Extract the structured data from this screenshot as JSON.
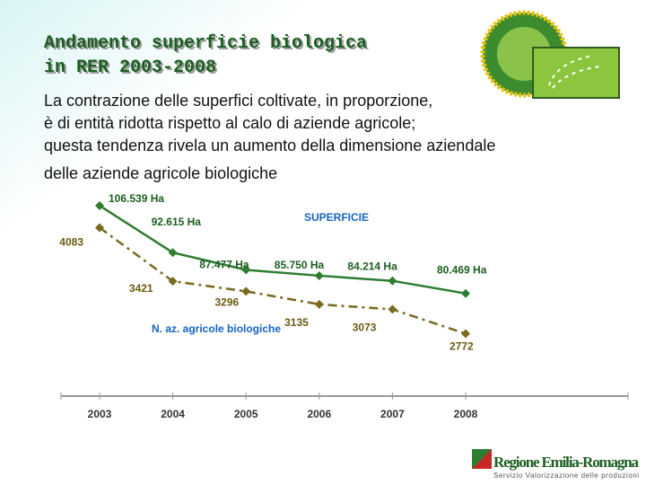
{
  "header": {
    "title_lines": [
      "Andamento superficie biologica",
      "in RER 2003-2008"
    ],
    "text_lines": [
      "La contrazione delle superfici coltivate, in proporzione,",
      "è di entità ridotta rispetto al calo di aziende agricole;",
      "questa tendenza rivela un aumento della dimensione aziendale",
      "delle aziende agricole biologiche"
    ]
  },
  "chart_data": {
    "type": "line",
    "categories": [
      "2003",
      "2004",
      "2005",
      "2006",
      "2007",
      "2008"
    ],
    "series": [
      {
        "name": "SUPERFICIE",
        "color": "#2e7d32",
        "values": [
          106539,
          92615,
          87477,
          85750,
          84214,
          80469
        ],
        "value_labels": [
          "106.539 Ha",
          "92.615 Ha",
          "87.477 Ha",
          "85.750 Ha",
          "84.214 Ha",
          "80.469 Ha"
        ]
      },
      {
        "name": "N. az. agricole biologiche",
        "color": "#7a6a1e",
        "axis": "y2",
        "values": [
          4083,
          3421,
          3296,
          3135,
          3073,
          2772
        ]
      }
    ],
    "ylim": [
      50000,
      110000
    ],
    "y2lim": [
      2000,
      4500
    ]
  },
  "footer": {
    "logo_name": "Regione Emilia-Romagna",
    "logo_tagline": "Servizio Valorizzazione delle produzioni"
  }
}
